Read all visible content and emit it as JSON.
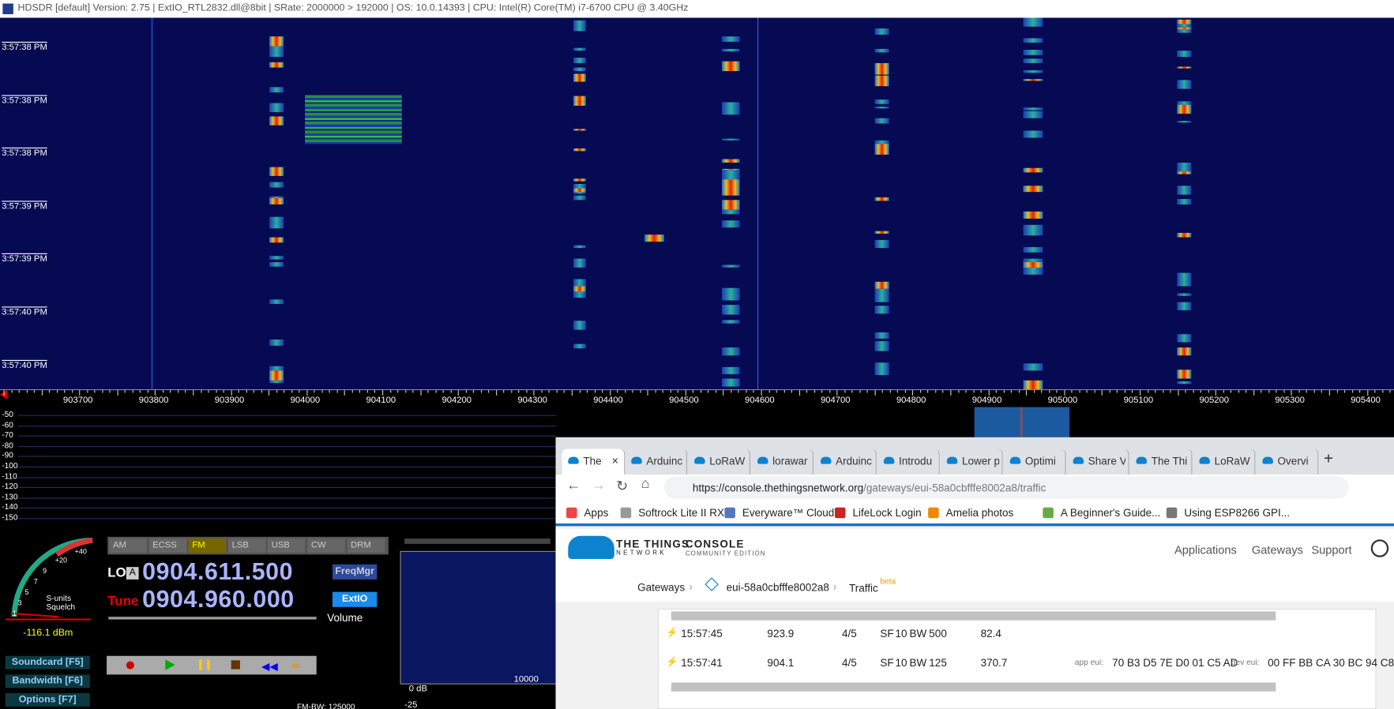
{
  "title_bar": "HDSDR  [default]  Version: 2.75  |  ExtIO_RTL2832.dll@8bit  |  SRate: 2000000 > 192000  |  OS: 10.0.14393  |  CPU: Intel(R) Core(TM) i7-6700 CPU @ 3.40GHz",
  "waterfall": {
    "timestamps": [
      "3:57:38 PM",
      "3:57:38 PM",
      "3:57:38 PM",
      "3:57:39 PM",
      "3:57:39 PM",
      "3:57:40 PM",
      "3:57:40 PM"
    ],
    "freq_labels": [
      "903700",
      "903800",
      "903900",
      "904000",
      "904100",
      "904200",
      "904300",
      "904400",
      "904500",
      "904600",
      "904700",
      "904800",
      "904900",
      "905000",
      "905100",
      "905200",
      "905300",
      "905400"
    ]
  },
  "spectrum": {
    "db_labels": [
      "-50",
      "-60",
      "-70",
      "-80",
      "-90",
      "-100",
      "-110",
      "-120",
      "-130",
      "-140",
      "-150"
    ]
  },
  "controls": {
    "modes": [
      "AM",
      "ECSS",
      "FM",
      "LSB",
      "USB",
      "CW",
      "DRM"
    ],
    "lo_label": "LO",
    "lo_vfo": "A",
    "lo_freq": "0904.611.500",
    "tune_label": "Tune",
    "tune_freq": "0904.960.000",
    "freqmgr": "FreqMgr",
    "extio": "ExtIO",
    "volume": "Volume",
    "level": "-116.1 dBm",
    "smeter_units": "S-units",
    "smeter_squelch": "Squelch",
    "smeter_scale": [
      "+40",
      "+20",
      "9",
      "7",
      "5",
      "3",
      "1"
    ],
    "side_buttons": [
      "Soundcard [F5]",
      "Bandwidth [F6]",
      "Options [F7]"
    ],
    "af_db": "0 dB",
    "af_db2": "-25",
    "af_freq": "10000",
    "fm_bw": "FM-BW: 125000"
  },
  "browser": {
    "tabs": [
      "The",
      "Arduinc",
      "LoRaW",
      "lorawar",
      "Arduinc",
      "Introdu",
      "Lower p",
      "Optimi",
      "Share V",
      "The Thi",
      "LoRaW",
      "Overvi"
    ],
    "url_host": "https://console.thethingsnetwork.org",
    "url_path": "/gateways/eui-58a0cbfffe8002a8/traffic",
    "bookmarks": [
      "Apps",
      "Softrock Lite II RX",
      "Everyware™ Cloud",
      "LifeLock Login",
      "Amelia photos",
      "A Beginner's Guide...",
      "Using ESP8266 GPI..."
    ],
    "logo_top": "THE THINGS",
    "logo_bottom": "NETWORK",
    "console": "CONSOLE",
    "edition": "COMMUNITY EDITION",
    "nav": [
      "Applications",
      "Gateways",
      "Support"
    ],
    "breadcrumb": [
      "Gateways",
      "eui-58a0cbfffe8002a8",
      "Traffic"
    ],
    "badge": "beta",
    "rows": [
      [
        "15:57:45",
        "923.9",
        "4/5",
        "SF",
        "10",
        "BW",
        "500",
        "82.4"
      ],
      [
        "15:57:41",
        "904.1",
        "4/5",
        "SF",
        "10",
        "BW",
        "125",
        "370.7",
        "app eui:",
        "70 B3 D5 7E D0 01 C5 AD",
        "dev eui:",
        "00 FF BB CA 30 BC 94 C8"
      ]
    ]
  }
}
